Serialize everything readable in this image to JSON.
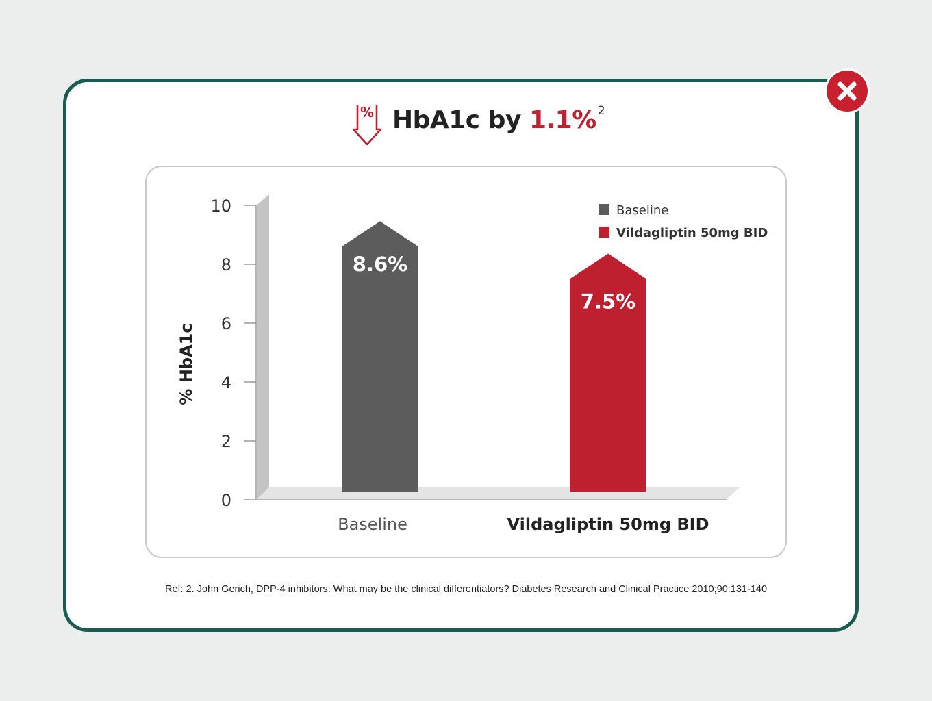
{
  "title": {
    "prefix": "HbA1c by ",
    "value": "1.1%",
    "superscript": "2",
    "icon": "percent-down-arrow-icon"
  },
  "close_button": {
    "icon": "close-icon"
  },
  "chart_data": {
    "type": "bar",
    "categories": [
      "Baseline",
      "Vildagliptin 50mg BID"
    ],
    "series": [
      {
        "name": "Baseline",
        "values": [
          8.6,
          null
        ],
        "color": "#5c5c5c"
      },
      {
        "name": "Vildagliptin 50mg BID",
        "values": [
          null,
          7.5
        ],
        "color": "#be2030"
      }
    ],
    "values": [
      8.6,
      7.5
    ],
    "data_labels": [
      "8.6%",
      "7.5%"
    ],
    "ylabel": "% HbA1c",
    "xlabel": "",
    "ylim": [
      0,
      10
    ],
    "yticks": [
      "0",
      "2",
      "4",
      "6",
      "8",
      "10"
    ],
    "grid": false,
    "legend_position": "top-right",
    "legend": [
      "Baseline",
      "Vildagliptin 50mg BID"
    ]
  },
  "reference": "Ref: 2. John Gerich, DPP-4 inhibitors: What may be the clinical differentiators? Diabetes Research and Clinical Practice 2010;90:131-140",
  "colors": {
    "brand_red": "#c0202f",
    "baseline_gray": "#5c5c5c",
    "frame_green": "#1b5c52",
    "page_bg": "#eceeed"
  }
}
